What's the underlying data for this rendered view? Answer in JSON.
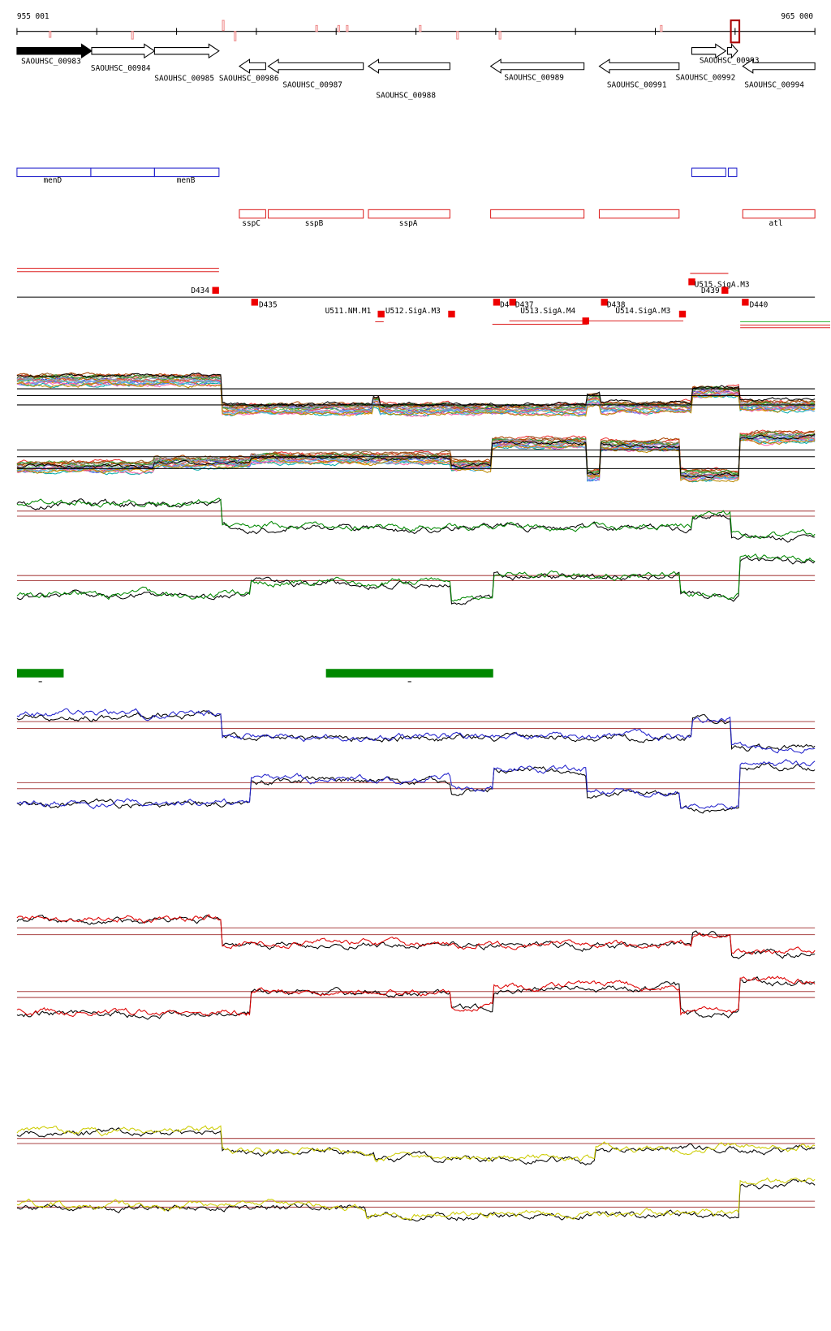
{
  "ruler": {
    "start": "955 001",
    "end": "965 000"
  },
  "genes": [
    "SAOUHSC_00983",
    "SAOUHSC_00984",
    "SAOUHSC_00985",
    "SAOUHSC_00986",
    "SAOUHSC_00987",
    "SAOUHSC_00988",
    "SAOUHSC_00989",
    "SAOUHSC_00991",
    "SAOUHSC_00992",
    "SAOUHSC_00993",
    "SAOUHSC_00994"
  ],
  "blue_features": [
    "menD",
    "menB"
  ],
  "red_features": [
    "sspC",
    "sspB",
    "sspA",
    "atl"
  ],
  "sites": [
    "D434",
    "D435",
    "U511.NM.M1",
    "U512.SigA.M3",
    "D4",
    "D437",
    "U513.SigA.M4",
    "D438",
    "U514.SigA.M3",
    "U515.SigA.M3",
    "D439",
    "D440"
  ]
}
